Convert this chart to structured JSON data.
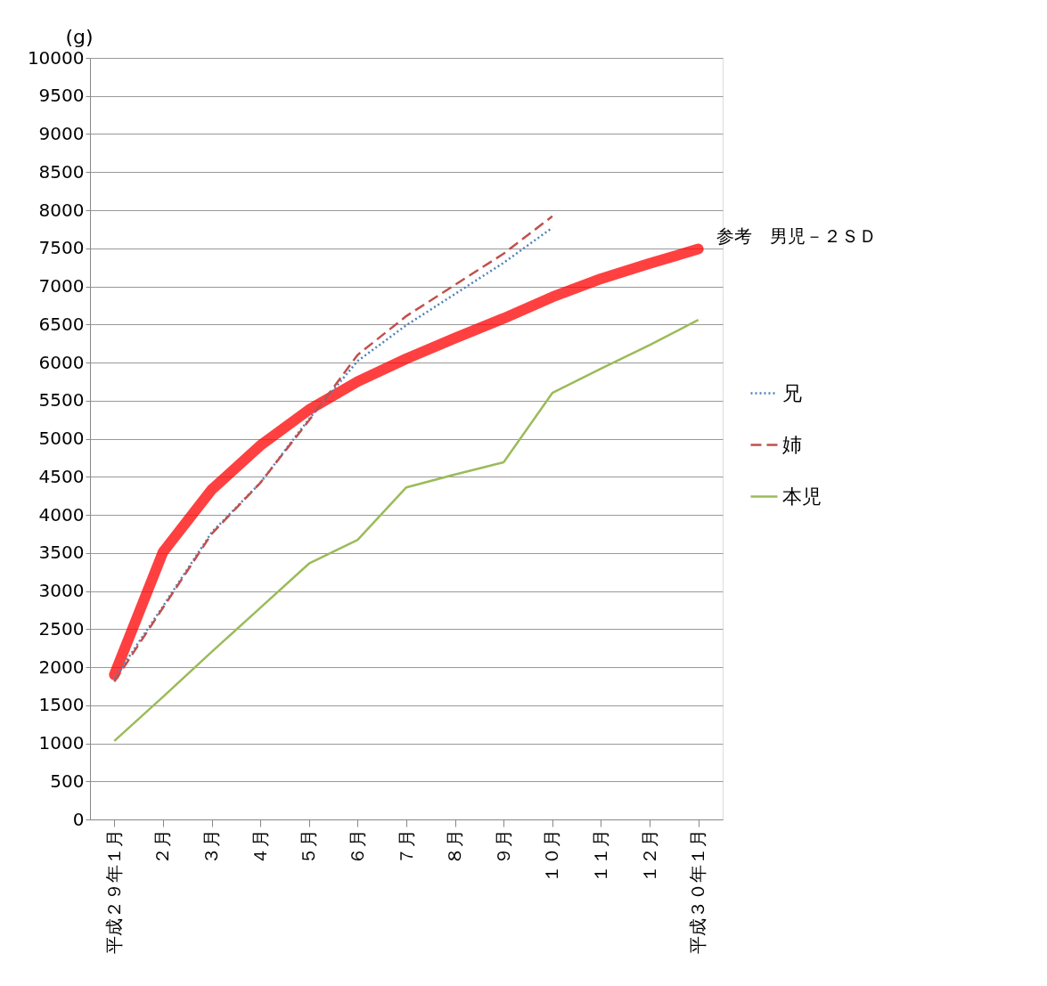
{
  "chart_data": {
    "type": "line",
    "ylabel": "(g)",
    "categories": [
      "平成２９年１月",
      "２月",
      "３月",
      "４月",
      "５月",
      "６月",
      "７月",
      "８月",
      "９月",
      "１０月",
      "１１月",
      "１２月",
      "平成３０年１月"
    ],
    "series": [
      {
        "name": "参考　男児－２ＳＤ",
        "color": "#ff0000",
        "line_style": "solid",
        "values": [
          1900,
          3510,
          4330,
          4910,
          5380,
          5750,
          6050,
          6320,
          6580,
          6860,
          7100,
          7300,
          7490
        ]
      },
      {
        "name": "兄",
        "color": "#4f81bd",
        "line_style": "dotted",
        "values": [
          1850,
          2800,
          3770,
          4420,
          5260,
          6020,
          6490,
          6900,
          7310,
          7770,
          null,
          null,
          null
        ]
      },
      {
        "name": "姉",
        "color": "#c0504d",
        "line_style": "dashed",
        "values": [
          1810,
          2780,
          3750,
          4420,
          5240,
          6100,
          6610,
          7020,
          7430,
          7920,
          null,
          null,
          null
        ]
      },
      {
        "name": "本児",
        "color": "#9bbb59",
        "line_style": "solid",
        "values": [
          1030,
          1610,
          2200,
          2780,
          3360,
          3670,
          4360,
          4530,
          4690,
          5600,
          5920,
          6230,
          6560
        ]
      }
    ],
    "ylim": [
      0,
      10000
    ],
    "yticks": [
      0,
      500,
      1000,
      1500,
      2000,
      2500,
      3000,
      3500,
      4000,
      4500,
      5000,
      5500,
      6000,
      6500,
      7000,
      7500,
      8000,
      8500,
      9000,
      9500,
      10000
    ],
    "grid": "y",
    "legend": "right"
  }
}
